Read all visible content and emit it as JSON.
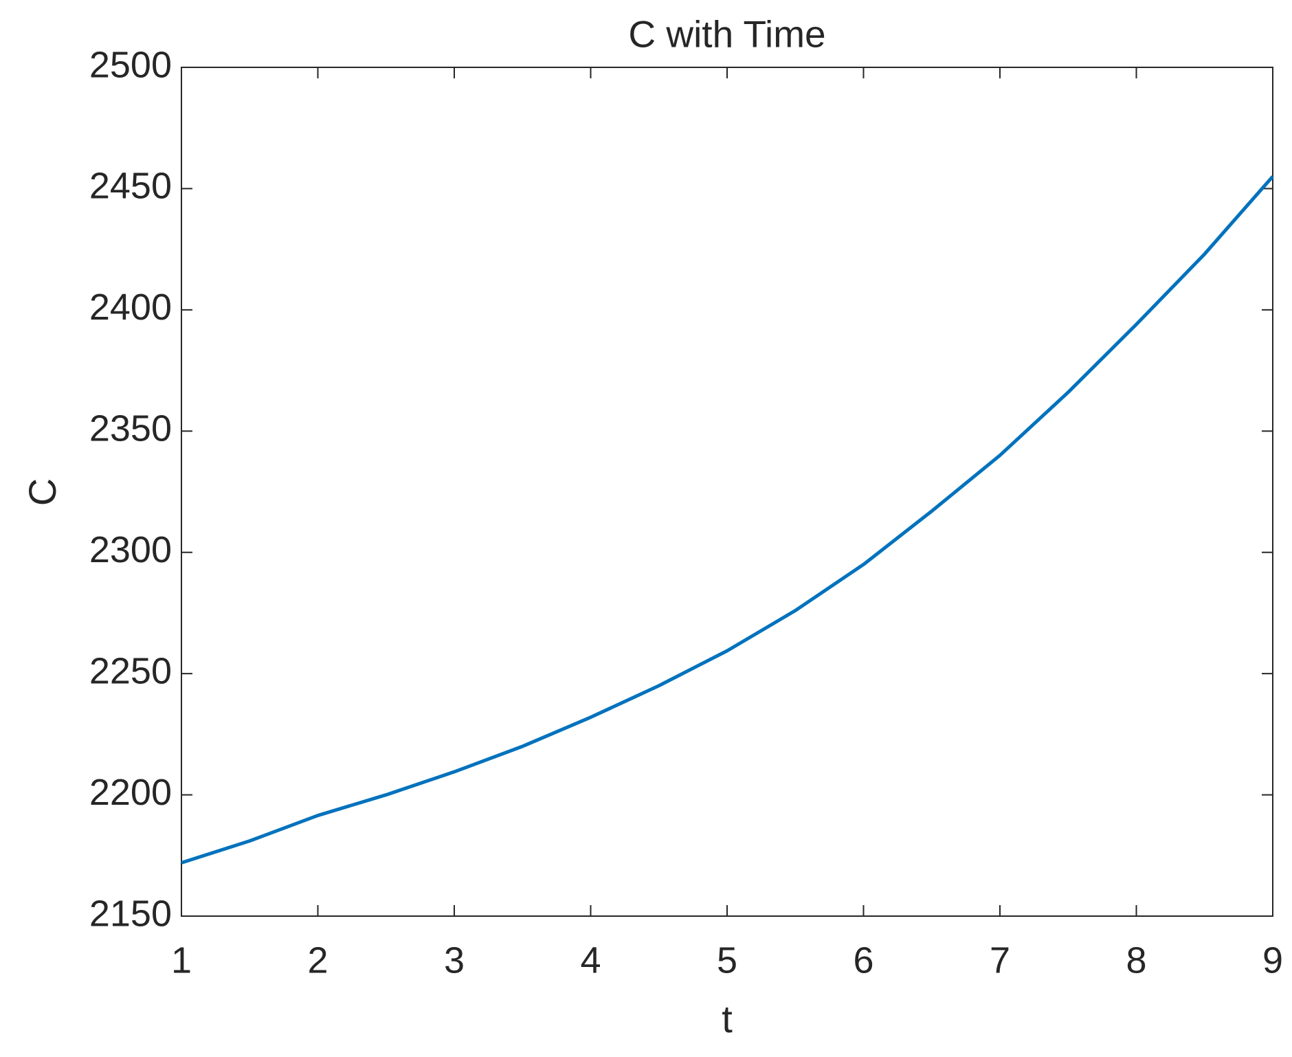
{
  "chart_data": {
    "type": "line",
    "title": "C with Time",
    "x_label": "t",
    "y_label": "C",
    "x": [
      1,
      1.5,
      2,
      2.5,
      3,
      3.5,
      4,
      4.5,
      5,
      5.5,
      6,
      6.5,
      7,
      7.5,
      8,
      8.5,
      9
    ],
    "series": [
      {
        "name": "C",
        "color": "#0072bd",
        "values": [
          2172,
          2181,
          2191.5,
          2200,
          2209.5,
          2220,
          2232,
          2245,
          2259.4,
          2276,
          2295,
          2317,
          2340,
          2366,
          2394,
          2423,
          2455
        ]
      }
    ],
    "xlim": [
      1,
      9
    ],
    "xticks": [
      1,
      2,
      3,
      4,
      5,
      6,
      7,
      8,
      9
    ],
    "ylim": [
      2150,
      2500
    ],
    "yticks": [
      2150,
      2200,
      2250,
      2300,
      2350,
      2400,
      2450,
      2500
    ],
    "grid": false
  }
}
